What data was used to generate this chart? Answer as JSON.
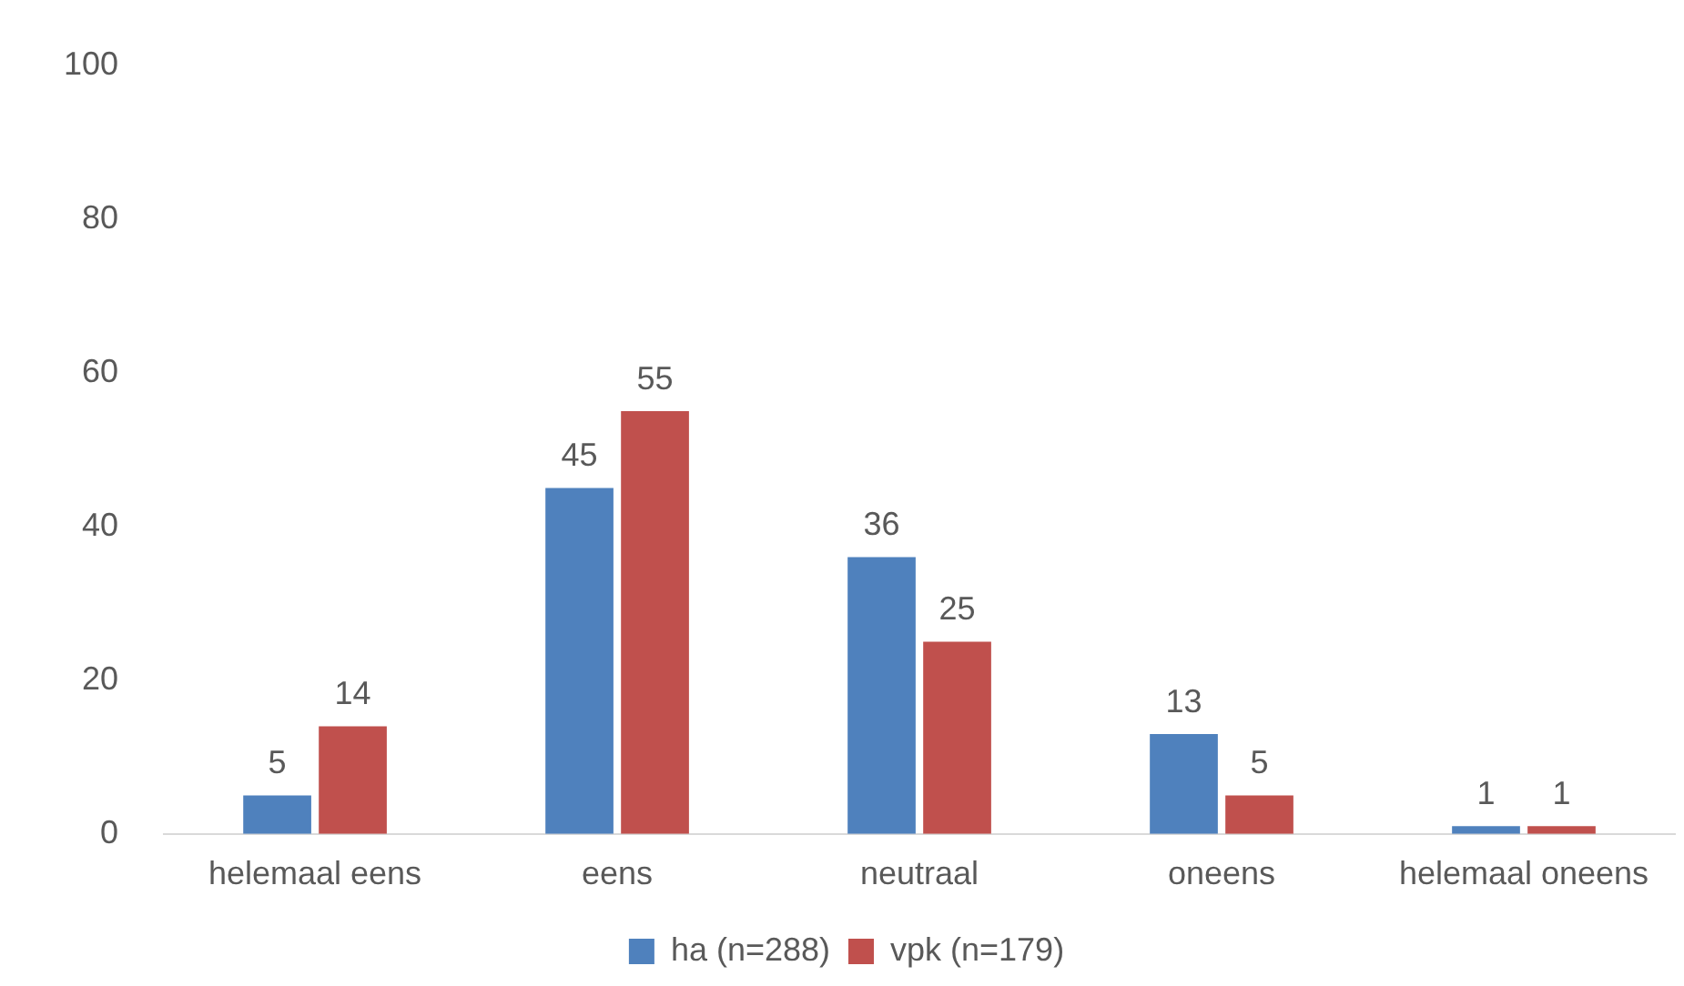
{
  "chart_data": {
    "type": "bar",
    "categories": [
      "helemaal eens",
      "eens",
      "neutraal",
      "oneens",
      "helemaal oneens"
    ],
    "series": [
      {
        "name": "ha (n=288)",
        "color": "#4f81bd",
        "values": [
          5,
          45,
          36,
          13,
          1
        ]
      },
      {
        "name": "vpk (n=179)",
        "color": "#c0504d",
        "values": [
          14,
          55,
          25,
          5,
          1
        ]
      }
    ],
    "ylim": [
      0,
      100
    ],
    "yticks": [
      0,
      20,
      40,
      60,
      80,
      100
    ],
    "grid": false,
    "legend": "bottom",
    "data_labels": true
  }
}
